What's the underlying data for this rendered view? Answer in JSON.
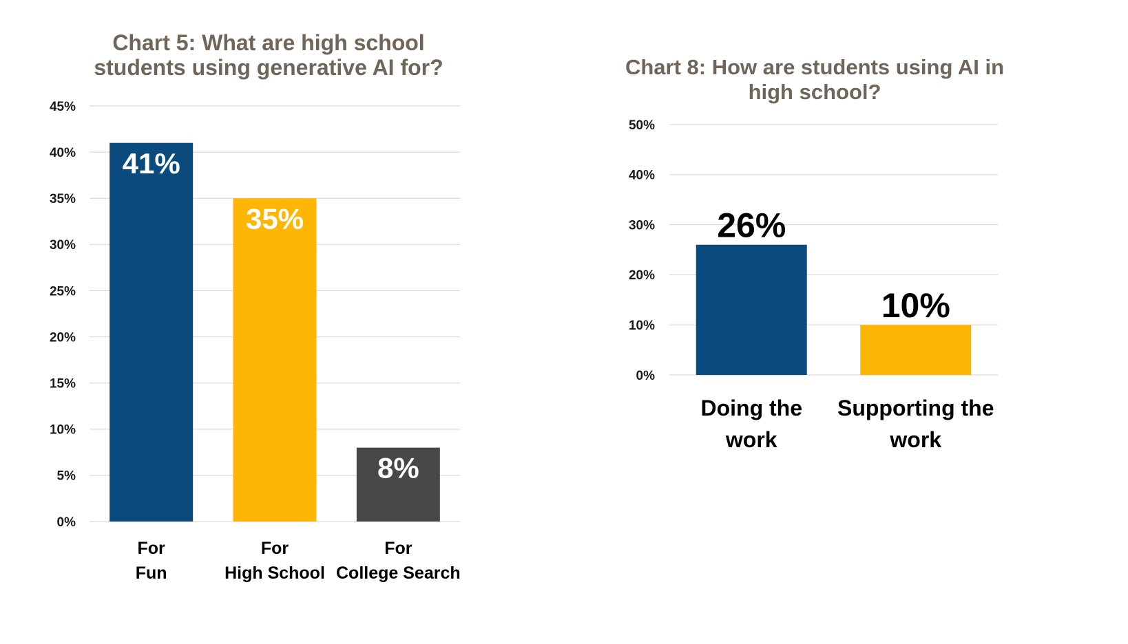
{
  "chart_data": [
    {
      "type": "bar",
      "title": "Chart 5: What are high school students using generative AI for?",
      "categories": [
        [
          "For",
          "Fun"
        ],
        [
          "For",
          "High School"
        ],
        [
          "For",
          "College Search"
        ]
      ],
      "values": [
        41,
        35,
        8
      ],
      "data_labels": [
        "41%",
        "35%",
        "8%"
      ],
      "bar_colors": [
        "#0b4a7d",
        "#fdb606",
        "#474747"
      ],
      "ylim": [
        0,
        45
      ],
      "yticks": [
        0,
        5,
        10,
        15,
        20,
        25,
        30,
        35,
        40,
        45
      ],
      "tick_labels": [
        "0%",
        "5%",
        "10%",
        "15%",
        "20%",
        "25%",
        "30%",
        "35%",
        "40%",
        "45%"
      ],
      "grid": true,
      "xlabel": "",
      "ylabel": ""
    },
    {
      "type": "bar",
      "title": "Chart 8: How are students using AI in high school?",
      "categories": [
        [
          "Doing the",
          "work"
        ],
        [
          "Supporting the",
          "work"
        ]
      ],
      "values": [
        26,
        10
      ],
      "data_labels": [
        "26%",
        "10%"
      ],
      "bar_colors": [
        "#0b4a7d",
        "#fdb606"
      ],
      "ylim": [
        0,
        50
      ],
      "yticks": [
        0,
        10,
        20,
        30,
        40,
        50
      ],
      "tick_labels": [
        "0%",
        "10%",
        "20%",
        "30%",
        "40%",
        "50%"
      ],
      "grid": true,
      "xlabel": "",
      "ylabel": ""
    }
  ]
}
